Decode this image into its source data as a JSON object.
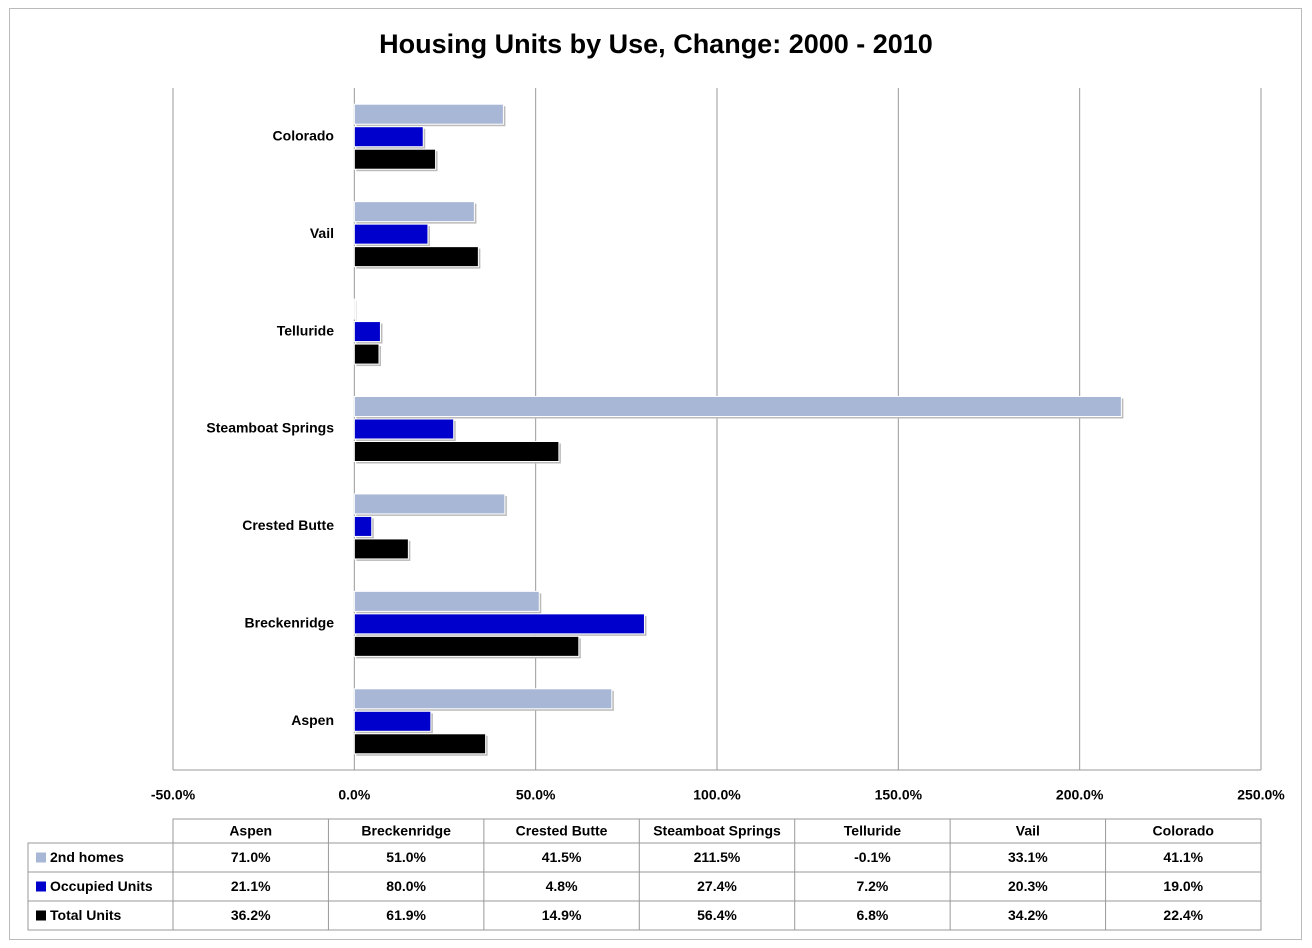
{
  "chart_data": {
    "type": "bar",
    "orientation": "horizontal",
    "title": "Housing Units by Use, Change: 2000 - 2010",
    "categories": [
      "Aspen",
      "Breckenridge",
      "Crested Butte",
      "Steamboat Springs",
      "Telluride",
      "Vail",
      "Colorado"
    ],
    "series": [
      {
        "name": "2nd homes",
        "color": "#a9b7d6",
        "values": [
          71.0,
          51.0,
          41.5,
          211.5,
          -0.1,
          33.1,
          41.1
        ],
        "value_labels": [
          "71.0%",
          "51.0%",
          "41.5%",
          "211.5%",
          "-0.1%",
          "33.1%",
          "41.1%"
        ]
      },
      {
        "name": "Occupied Units",
        "color": "#0000cc",
        "values": [
          21.1,
          80.0,
          4.8,
          27.4,
          7.2,
          20.3,
          19.0
        ],
        "value_labels": [
          "21.1%",
          "80.0%",
          "4.8%",
          "27.4%",
          "7.2%",
          "20.3%",
          "19.0%"
        ]
      },
      {
        "name": "Total Units",
        "color": "#000000",
        "values": [
          36.2,
          61.9,
          14.9,
          56.4,
          6.8,
          34.2,
          22.4
        ],
        "value_labels": [
          "36.2%",
          "61.9%",
          "14.9%",
          "56.4%",
          "6.8%",
          "34.2%",
          "22.4%"
        ]
      }
    ],
    "xlim": [
      -50,
      250
    ],
    "xticks": [
      {
        "value": -50,
        "label": "-50.0%"
      },
      {
        "value": 0,
        "label": "0.0%"
      },
      {
        "value": 50,
        "label": "50.0%"
      },
      {
        "value": 100,
        "label": "100.0%"
      },
      {
        "value": 150,
        "label": "150.0%"
      },
      {
        "value": 200,
        "label": "200.0%"
      },
      {
        "value": 250,
        "label": "250.0%"
      }
    ],
    "grid": true
  }
}
